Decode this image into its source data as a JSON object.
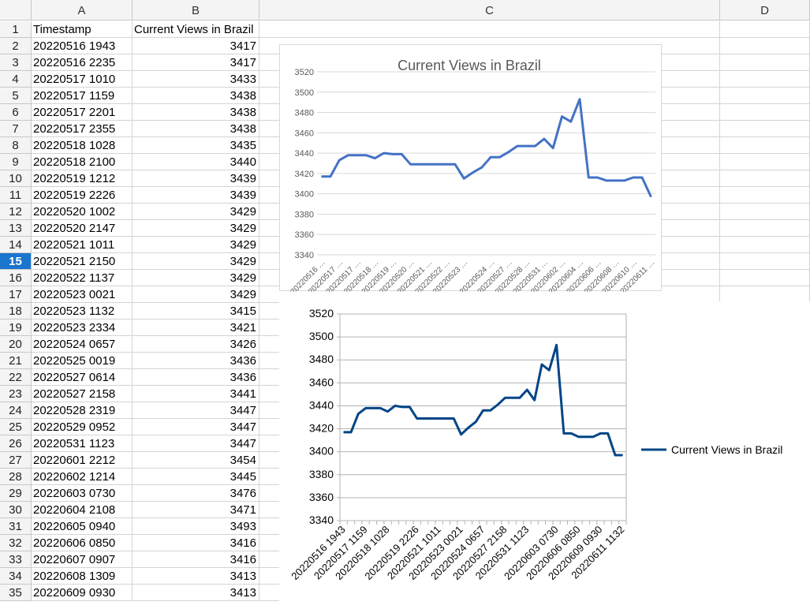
{
  "sheet": {
    "columns": [
      "A",
      "B",
      "C",
      "D"
    ],
    "header_row": {
      "timestamp": "Timestamp",
      "views": "Current Views in Brazil"
    },
    "active_row": 15,
    "rows": [
      {
        "t": "20220516 1943",
        "v": "3417"
      },
      {
        "t": "20220516 2235",
        "v": "3417"
      },
      {
        "t": "20220517 1010",
        "v": "3433"
      },
      {
        "t": "20220517 1159",
        "v": "3438"
      },
      {
        "t": "20220517 2201",
        "v": "3438"
      },
      {
        "t": "20220517 2355",
        "v": "3438"
      },
      {
        "t": "20220518 1028",
        "v": "3435"
      },
      {
        "t": "20220518 2100",
        "v": "3440"
      },
      {
        "t": "20220519 1212",
        "v": "3439"
      },
      {
        "t": "20220519 2226",
        "v": "3439"
      },
      {
        "t": "20220520 1002",
        "v": "3429"
      },
      {
        "t": "20220520 2147",
        "v": "3429"
      },
      {
        "t": "20220521 1011",
        "v": "3429"
      },
      {
        "t": "20220521 2150",
        "v": "3429"
      },
      {
        "t": "20220522 1137",
        "v": "3429"
      },
      {
        "t": "20220523 0021",
        "v": "3429"
      },
      {
        "t": "20220523 1132",
        "v": "3415"
      },
      {
        "t": "20220523 2334",
        "v": "3421"
      },
      {
        "t": "20220524 0657",
        "v": "3426"
      },
      {
        "t": "20220525 0019",
        "v": "3436"
      },
      {
        "t": "20220527 0614",
        "v": "3436"
      },
      {
        "t": "20220527 2158",
        "v": "3441"
      },
      {
        "t": "20220528 2319",
        "v": "3447"
      },
      {
        "t": "20220529 0952",
        "v": "3447"
      },
      {
        "t": "20220531 1123",
        "v": "3447"
      },
      {
        "t": "20220601 2212",
        "v": "3454"
      },
      {
        "t": "20220602 1214",
        "v": "3445"
      },
      {
        "t": "20220603 0730",
        "v": "3476"
      },
      {
        "t": "20220604 2108",
        "v": "3471"
      },
      {
        "t": "20220605 0940",
        "v": "3493"
      },
      {
        "t": "20220606 0850",
        "v": "3416"
      },
      {
        "t": "20220607 0907",
        "v": "3416"
      },
      {
        "t": "20220608 1309",
        "v": "3413"
      },
      {
        "t": "20220609 0930",
        "v": "3413"
      }
    ]
  },
  "chart_data": [
    {
      "type": "line",
      "title": "Current Views in Brazil",
      "x_tick_labels": [
        "20220516 …",
        "20220517 …",
        "20220517 …",
        "20220518 …",
        "20220519 …",
        "20220520 …",
        "20220521 …",
        "20220522 …",
        "20220523 …",
        "20220524 …",
        "20220527 …",
        "20220528 …",
        "20220531 …",
        "20220602 …",
        "20220604 …",
        "20220606 …",
        "20220608 …",
        "20220610 …",
        "20220611 …"
      ],
      "y_ticks": [
        "3340",
        "3360",
        "3380",
        "3400",
        "3420",
        "3440",
        "3460",
        "3480",
        "3500",
        "3520"
      ],
      "ylim": [
        3340,
        3520
      ],
      "grid": true,
      "color": "#4472c4",
      "series": [
        {
          "values": [
            3417,
            3417,
            3433,
            3438,
            3438,
            3438,
            3435,
            3440,
            3439,
            3439,
            3429,
            3429,
            3429,
            3429,
            3429,
            3429,
            3415,
            3421,
            3426,
            3436,
            3436,
            3441,
            3447,
            3447,
            3447,
            3454,
            3445,
            3476,
            3471,
            3493,
            3416,
            3416,
            3413,
            3413,
            3413,
            3416,
            3416,
            3397
          ]
        }
      ]
    },
    {
      "type": "line",
      "x_tick_labels": [
        "20220516 1943",
        "20220517 1159",
        "20220518 1028",
        "20220519 2226",
        "20220521 1011",
        "20220523 0021",
        "20220524 0657",
        "20220527 2158",
        "20220531 1123",
        "20220603 0730",
        "20220606 0850",
        "20220609 0930",
        "20220611 1132"
      ],
      "y_ticks": [
        "3340",
        "3360",
        "3380",
        "3400",
        "3420",
        "3440",
        "3460",
        "3480",
        "3500",
        "3520"
      ],
      "ylim": [
        3340,
        3520
      ],
      "grid": true,
      "legend": "right",
      "color": "#004586",
      "series": [
        {
          "name": "Current Views in Brazil",
          "values": [
            3417,
            3417,
            3433,
            3438,
            3438,
            3438,
            3435,
            3440,
            3439,
            3439,
            3429,
            3429,
            3429,
            3429,
            3429,
            3429,
            3415,
            3421,
            3426,
            3436,
            3436,
            3441,
            3447,
            3447,
            3447,
            3454,
            3445,
            3476,
            3471,
            3493,
            3416,
            3416,
            3413,
            3413,
            3413,
            3416,
            3416,
            3397,
            3397
          ]
        }
      ]
    }
  ]
}
